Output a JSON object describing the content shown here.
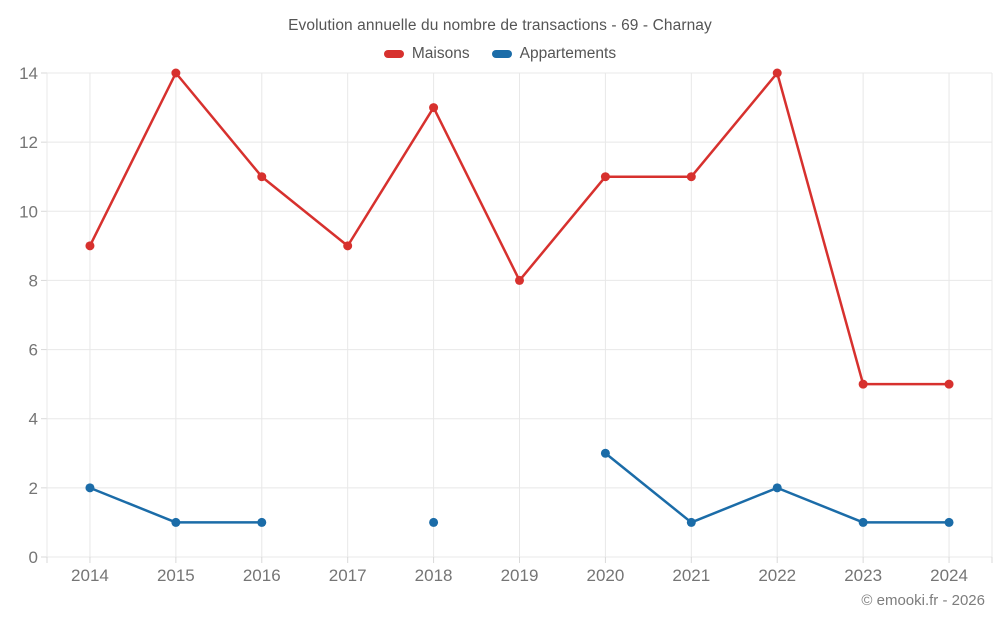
{
  "title": "Evolution annuelle du nombre de transactions - 69 - Charnay",
  "footer": "© emooki.fr - 2026",
  "colors": {
    "maisons": "#d7312e",
    "appartements": "#1b6ca8",
    "grid": "#e8e8e8",
    "tick": "#d9d9d9",
    "axis_text": "#757575",
    "title_text": "#555555",
    "footer_text": "#7d7d7d"
  },
  "chart_data": {
    "type": "line",
    "categories": [
      "2014",
      "2015",
      "2016",
      "2017",
      "2018",
      "2019",
      "2020",
      "2021",
      "2022",
      "2023",
      "2024"
    ],
    "series": [
      {
        "name": "Maisons",
        "color": "#d7312e",
        "values": [
          9,
          14,
          11,
          9,
          13,
          8,
          11,
          11,
          14,
          5,
          5
        ]
      },
      {
        "name": "Appartements",
        "color": "#1b6ca8",
        "values": [
          2,
          1,
          1,
          null,
          1,
          null,
          3,
          1,
          2,
          1,
          1
        ]
      }
    ],
    "title": "Evolution annuelle du nombre de transactions - 69 - Charnay",
    "xlabel": "",
    "ylabel": "",
    "ylim": [
      0,
      14
    ],
    "yticks": [
      0,
      2,
      4,
      6,
      8,
      10,
      12,
      14
    ],
    "grid": true,
    "legend_position": "top"
  }
}
